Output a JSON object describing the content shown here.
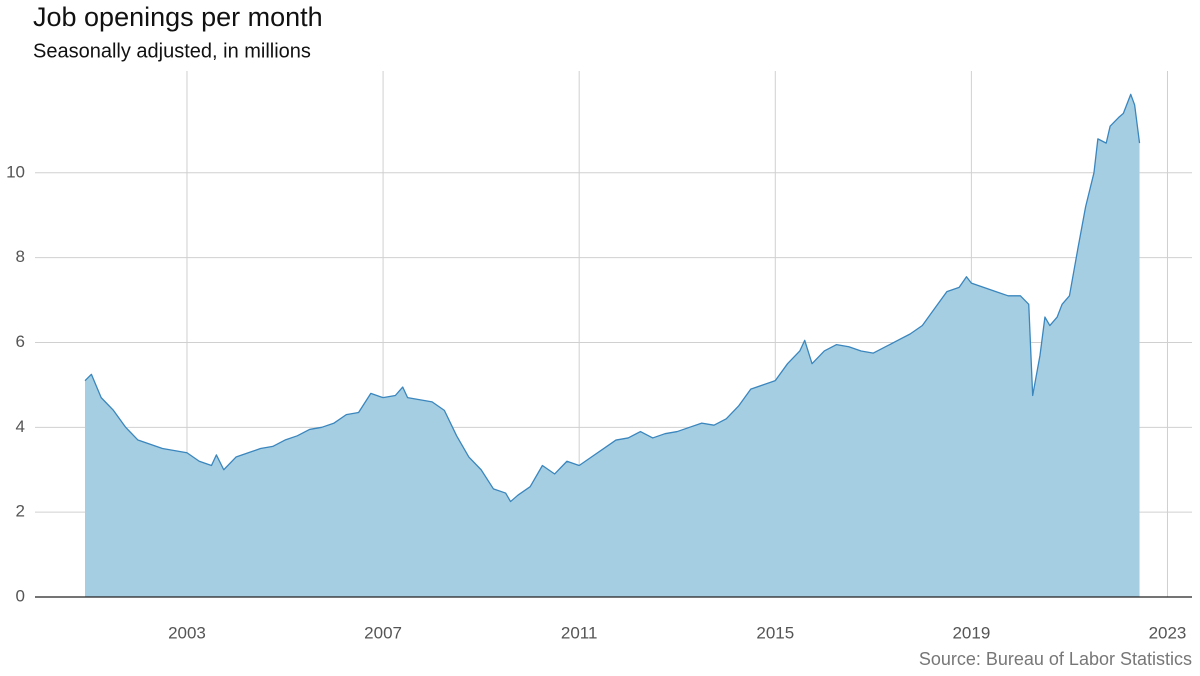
{
  "chart_data": {
    "type": "area",
    "title": "Job openings per month",
    "subtitle": "Seasonally adjusted, in millions",
    "source": "Source: Bureau of Labor Statistics",
    "fill": "#a6cee3",
    "color": "#3a86bd",
    "grid": true,
    "xlim": [
      1999.9,
      2023.5
    ],
    "xticks": [
      2003,
      2007,
      2011,
      2015,
      2019,
      2023
    ],
    "ylim": [
      0,
      12.4
    ],
    "yticks": [
      0,
      2,
      4,
      6,
      8,
      10
    ],
    "x": [
      2000.92,
      2001.05,
      2001.25,
      2001.5,
      2001.75,
      2002.0,
      2002.25,
      2002.5,
      2002.75,
      2003.0,
      2003.25,
      2003.5,
      2003.6,
      2003.75,
      2004.0,
      2004.25,
      2004.5,
      2004.75,
      2005.0,
      2005.25,
      2005.5,
      2005.75,
      2006.0,
      2006.25,
      2006.5,
      2006.75,
      2007.0,
      2007.25,
      2007.4,
      2007.5,
      2007.75,
      2008.0,
      2008.25,
      2008.5,
      2008.75,
      2009.0,
      2009.25,
      2009.5,
      2009.6,
      2009.75,
      2010.0,
      2010.25,
      2010.5,
      2010.75,
      2011.0,
      2011.25,
      2011.5,
      2011.75,
      2012.0,
      2012.25,
      2012.5,
      2012.75,
      2013.0,
      2013.25,
      2013.5,
      2013.75,
      2014.0,
      2014.25,
      2014.5,
      2014.75,
      2015.0,
      2015.25,
      2015.5,
      2015.6,
      2015.75,
      2016.0,
      2016.25,
      2016.5,
      2016.75,
      2017.0,
      2017.25,
      2017.5,
      2017.75,
      2018.0,
      2018.25,
      2018.5,
      2018.75,
      2018.9,
      2019.0,
      2019.25,
      2019.5,
      2019.75,
      2020.0,
      2020.17,
      2020.25,
      2020.4,
      2020.5,
      2020.6,
      2020.75,
      2020.85,
      2021.0,
      2021.17,
      2021.33,
      2021.5,
      2021.58,
      2021.75,
      2021.83,
      2022.0,
      2022.1,
      2022.25,
      2022.33,
      2022.43
    ],
    "values": [
      5.1,
      5.25,
      4.7,
      4.4,
      4.0,
      3.7,
      3.6,
      3.5,
      3.45,
      3.4,
      3.2,
      3.1,
      3.35,
      3.0,
      3.3,
      3.4,
      3.5,
      3.55,
      3.7,
      3.8,
      3.95,
      4.0,
      4.1,
      4.3,
      4.35,
      4.8,
      4.7,
      4.75,
      4.95,
      4.7,
      4.65,
      4.6,
      4.4,
      3.8,
      3.3,
      3.0,
      2.55,
      2.45,
      2.25,
      2.4,
      2.6,
      3.1,
      2.9,
      3.2,
      3.1,
      3.3,
      3.5,
      3.7,
      3.75,
      3.9,
      3.75,
      3.85,
      3.9,
      4.0,
      4.1,
      4.05,
      4.2,
      4.5,
      4.9,
      5.0,
      5.1,
      5.5,
      5.8,
      6.05,
      5.5,
      5.8,
      5.95,
      5.9,
      5.8,
      5.75,
      5.9,
      6.05,
      6.2,
      6.4,
      6.8,
      7.2,
      7.3,
      7.55,
      7.4,
      7.3,
      7.2,
      7.1,
      7.1,
      6.9,
      4.75,
      5.7,
      6.6,
      6.4,
      6.6,
      6.9,
      7.1,
      8.2,
      9.2,
      10.0,
      10.8,
      10.7,
      11.1,
      11.3,
      11.4,
      11.85,
      11.6,
      10.7
    ]
  }
}
